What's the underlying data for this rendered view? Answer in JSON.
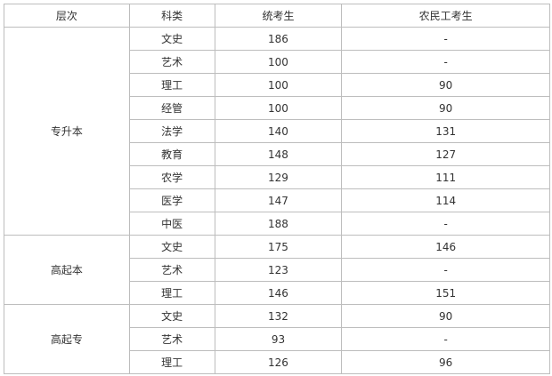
{
  "headers": [
    "层次",
    "科类",
    "统考生",
    "农民工考生"
  ],
  "groups": [
    {
      "level": "专升本",
      "rows": [
        [
          "文史",
          "186",
          "-"
        ],
        [
          "艺术",
          "100",
          "-"
        ],
        [
          "理工",
          "100",
          "90"
        ],
        [
          "经管",
          "100",
          "90"
        ],
        [
          "法学",
          "140",
          "131"
        ],
        [
          "教育",
          "148",
          "127"
        ],
        [
          "农学",
          "129",
          "111"
        ],
        [
          "医学",
          "147",
          "114"
        ],
        [
          "中医",
          "188",
          "-"
        ]
      ]
    },
    {
      "level": "高起本",
      "rows": [
        [
          "文史",
          "175",
          "146"
        ],
        [
          "艺术",
          "123",
          "-"
        ],
        [
          "理工",
          "146",
          "151"
        ]
      ]
    },
    {
      "level": "高起专",
      "rows": [
        [
          "文史",
          "132",
          "90"
        ],
        [
          "艺术",
          "93",
          "-"
        ],
        [
          "理工",
          "126",
          "96"
        ]
      ]
    }
  ]
}
